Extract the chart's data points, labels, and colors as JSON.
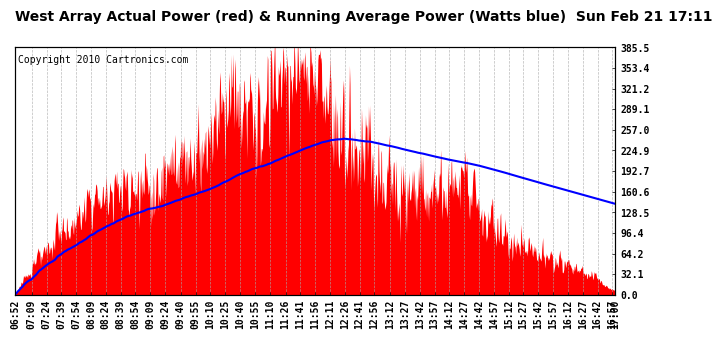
{
  "title": "West Array Actual Power (red) & Running Average Power (Watts blue)  Sun Feb 21 17:11",
  "copyright": "Copyright 2010 Cartronics.com",
  "ylabel_right_ticks": [
    0.0,
    32.1,
    64.2,
    96.4,
    128.5,
    160.6,
    192.7,
    224.9,
    257.0,
    289.1,
    321.2,
    353.4,
    385.5
  ],
  "ymax": 385.5,
  "ymin": 0.0,
  "fill_color": "#FF0000",
  "avg_line_color": "#0000FF",
  "background_color": "#FFFFFF",
  "grid_color": "#AAAAAA",
  "title_fontsize": 10,
  "copyright_fontsize": 7,
  "tick_fontsize": 7
}
